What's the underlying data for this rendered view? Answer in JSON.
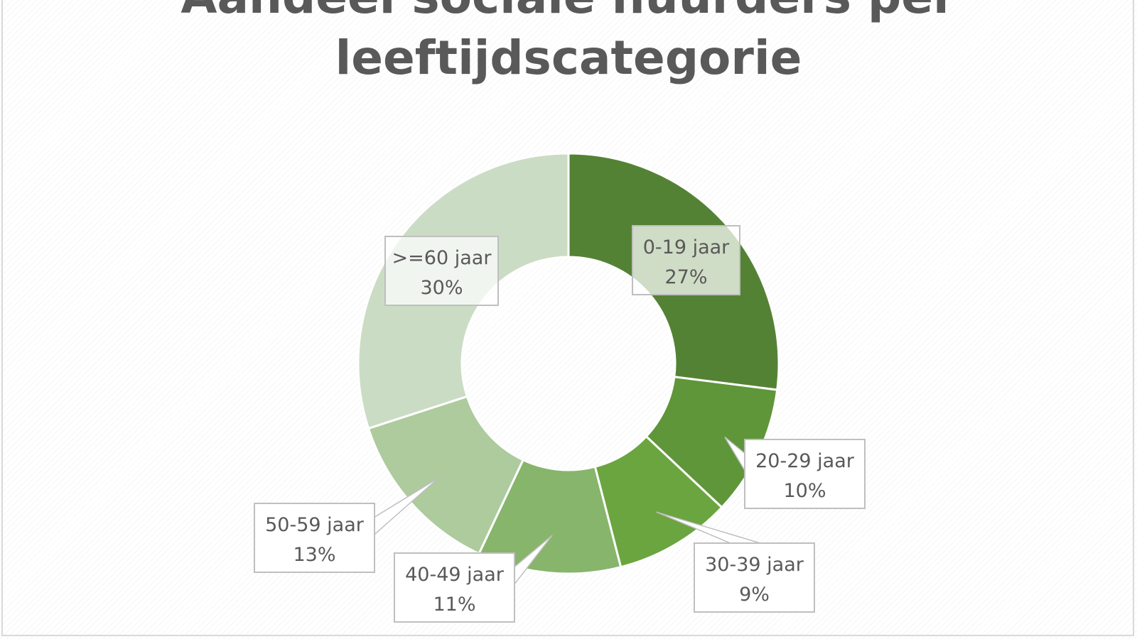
{
  "chart_data": {
    "type": "pie",
    "variant": "donut",
    "title_lines": [
      "Aandeel sociale huurders per",
      "leeftijdscategorie"
    ],
    "categories": [
      "0-19 jaar",
      "20-29 jaar",
      "30-39 jaar",
      "40-49 jaar",
      "50-59 jaar",
      ">=60 jaar"
    ],
    "values": [
      27,
      10,
      9,
      11,
      13,
      30
    ],
    "value_labels": [
      "27%",
      "10%",
      "9%",
      "11%",
      "13%",
      "30%"
    ],
    "colors": [
      "#548235",
      "#5e9639",
      "#6ba53f",
      "#87b56c",
      "#adcb9d",
      "#cbdcc4"
    ],
    "legend": "none",
    "data_labels": "callouts"
  }
}
